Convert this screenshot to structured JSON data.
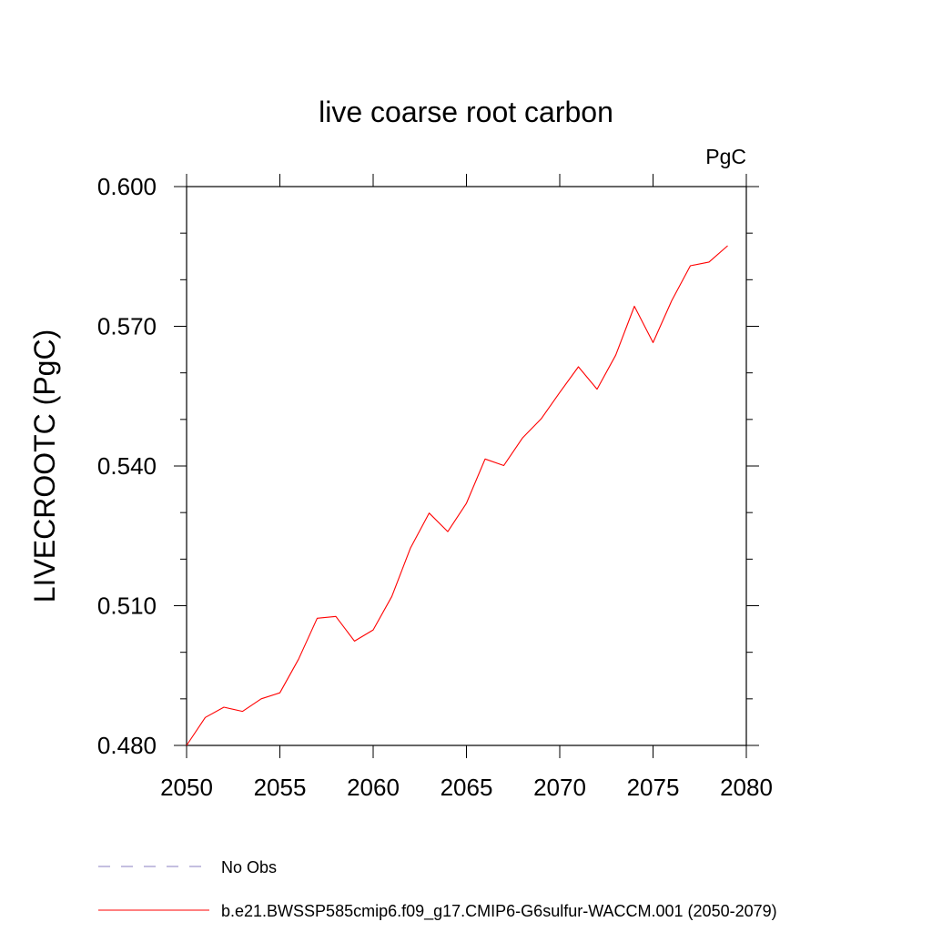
{
  "chart_data": {
    "type": "line",
    "title": "live coarse root carbon",
    "units_label": "PgC",
    "ylabel": "LIVECROOTC  (PgC)",
    "xlabel": "",
    "xlim": [
      2050,
      2080
    ],
    "ylim": [
      0.48,
      0.6
    ],
    "x_ticks": [
      2050,
      2055,
      2060,
      2065,
      2070,
      2075,
      2080
    ],
    "x_tick_labels": [
      "2050",
      "2055",
      "2060",
      "2065",
      "2070",
      "2075",
      "2080"
    ],
    "y_ticks": [
      0.48,
      0.51,
      0.54,
      0.57,
      0.6
    ],
    "y_tick_labels": [
      "0.480",
      "0.510",
      "0.540",
      "0.570",
      "0.600"
    ],
    "x_minor_step": 1,
    "y_minor_step": 0.01,
    "grid": false,
    "legend_position": "bottom-left, below plot",
    "series": [
      {
        "name": "b.e21.BWSSP585cmip6.f09_g17.CMIP6-G6sulfur-WACCM.001 (2050-2079)",
        "color": "#ff0000",
        "dash": "solid",
        "x": [
          2050,
          2051,
          2052,
          2053,
          2054,
          2055,
          2056,
          2057,
          2058,
          2059,
          2060,
          2061,
          2062,
          2063,
          2064,
          2065,
          2066,
          2067,
          2068,
          2069,
          2070,
          2071,
          2072,
          2073,
          2074,
          2075,
          2076,
          2077,
          2078,
          2079
        ],
        "values": [
          0.48,
          0.486,
          0.4882,
          0.4873,
          0.49,
          0.4913,
          0.4985,
          0.5073,
          0.5077,
          0.5024,
          0.5048,
          0.512,
          0.5224,
          0.5299,
          0.5259,
          0.532,
          0.5415,
          0.5401,
          0.546,
          0.5501,
          0.5558,
          0.5613,
          0.5565,
          0.5638,
          0.5743,
          0.5665,
          0.5755,
          0.583,
          0.5838,
          0.5873
        ]
      }
    ],
    "legend": [
      {
        "label": "No Obs",
        "color": "#8a7fc0",
        "dash": "dashed"
      },
      {
        "label": "b.e21.BWSSP585cmip6.f09_g17.CMIP6-G6sulfur-WACCM.001 (2050-2079)",
        "color": "#ff0000",
        "dash": "solid"
      }
    ]
  }
}
